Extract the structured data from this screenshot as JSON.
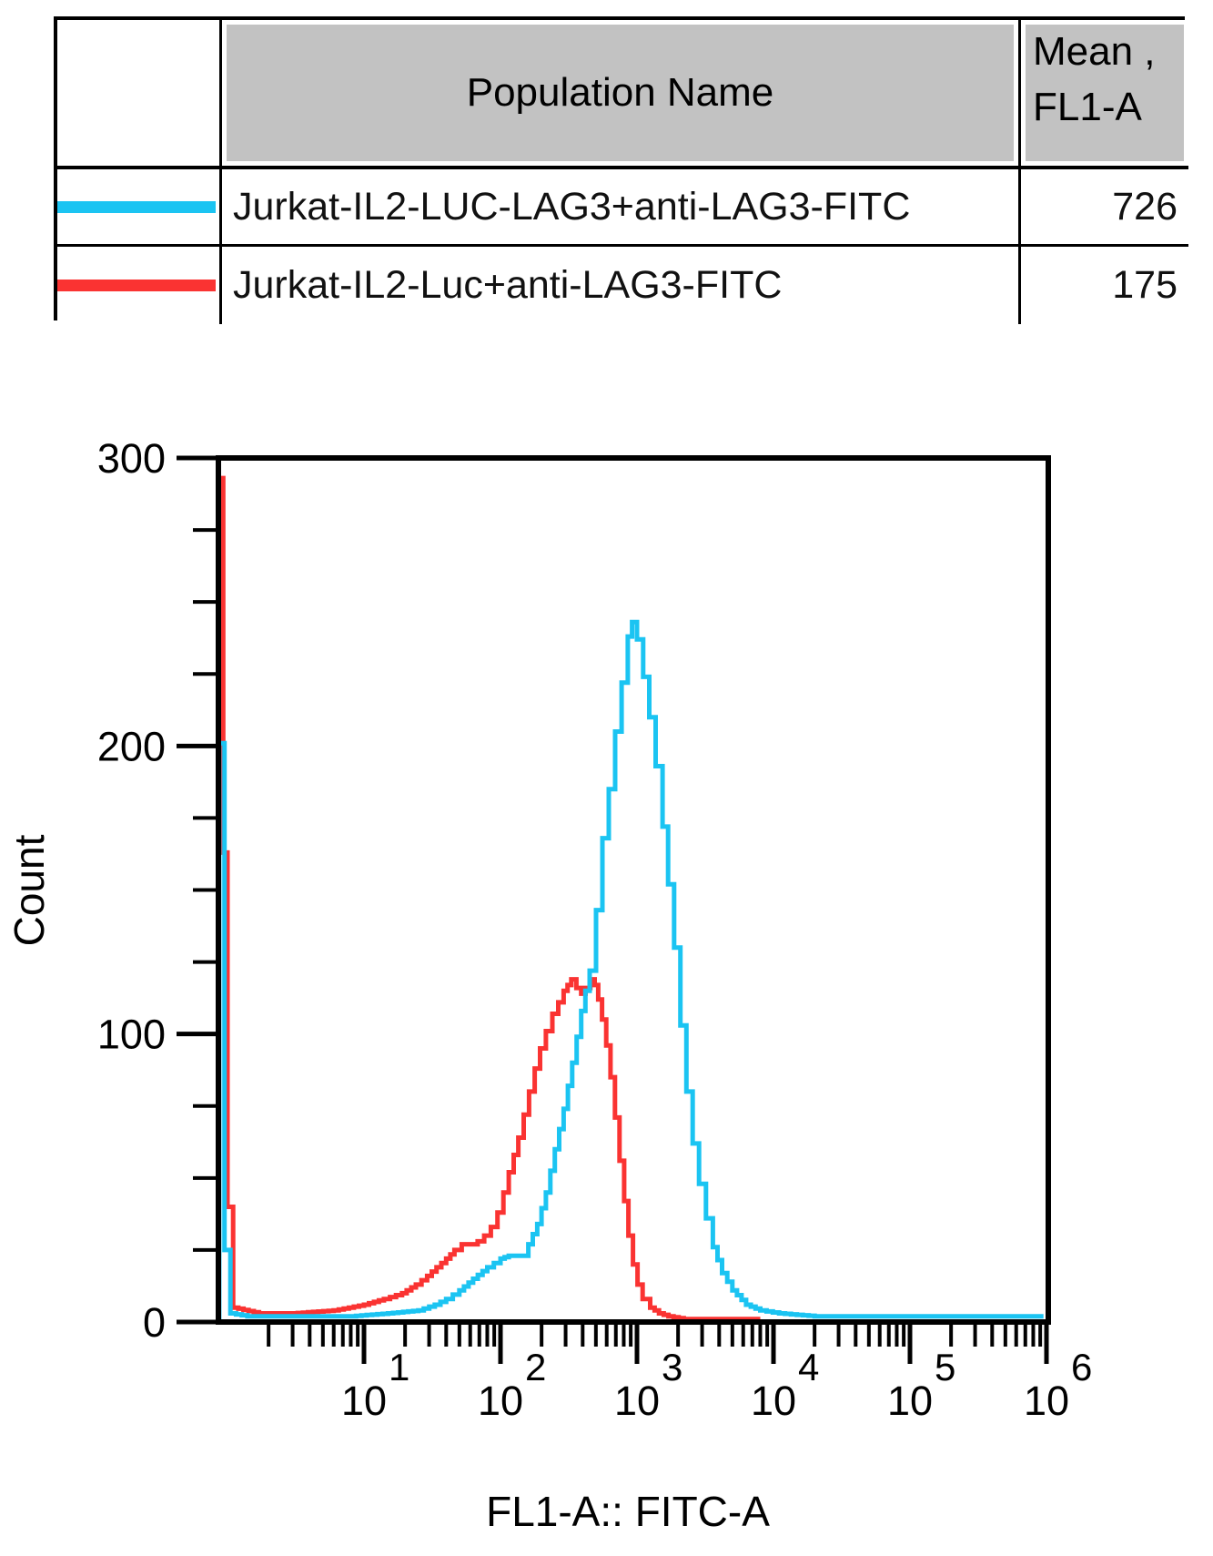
{
  "table": {
    "header": {
      "population": "Population Name",
      "mean_line1": "Mean ,",
      "mean_line2": "FL1-A"
    },
    "rows": [
      {
        "population": "Jurkat-IL2-LUC-LAG3+anti-LAG3-FITC",
        "mean": "726"
      },
      {
        "population": "Jurkat-IL2-Luc+anti-LAG3-FITC",
        "mean": "175"
      }
    ]
  },
  "chart_data": {
    "type": "line",
    "subtype": "flow-cytometry-step-histogram",
    "title": "",
    "xlabel": "FL1-A:: FITC-A",
    "ylabel": "Count",
    "x_scale": "log10",
    "x_range": [
      0.82,
      1070000
    ],
    "ylim": [
      0,
      300
    ],
    "y_ticks": [
      0,
      100,
      200,
      300
    ],
    "y_minor_step": 25,
    "x_decade_exponents": [
      1,
      2,
      3,
      4,
      5,
      6
    ],
    "grid": false,
    "legend_position": "table-top",
    "series": [
      {
        "name": "Jurkat-IL2-LUC-LAG3+anti-LAG3-FITC",
        "color": "#1bc4f2",
        "mean_fl1a": 726,
        "points": [
          [
            0.87,
            201
          ],
          [
            0.95,
            25
          ],
          [
            1.05,
            3
          ],
          [
            1.4,
            2
          ],
          [
            3,
            2
          ],
          [
            8,
            2
          ],
          [
            15,
            3
          ],
          [
            25,
            4
          ],
          [
            33,
            6
          ],
          [
            40,
            8
          ],
          [
            50,
            11
          ],
          [
            63,
            15
          ],
          [
            80,
            19
          ],
          [
            100,
            22
          ],
          [
            115,
            23
          ],
          [
            145,
            23
          ],
          [
            160,
            27
          ],
          [
            186,
            34
          ],
          [
            215,
            45
          ],
          [
            250,
            60
          ],
          [
            290,
            74
          ],
          [
            335,
            90
          ],
          [
            390,
            108
          ],
          [
            450,
            122
          ],
          [
            501,
            143
          ],
          [
            558,
            168
          ],
          [
            621,
            185
          ],
          [
            692,
            205
          ],
          [
            771,
            222
          ],
          [
            857,
            238
          ],
          [
            920,
            243
          ],
          [
            1000,
            237
          ],
          [
            1110,
            224
          ],
          [
            1230,
            210
          ],
          [
            1370,
            193
          ],
          [
            1540,
            172
          ],
          [
            1690,
            152
          ],
          [
            1870,
            130
          ],
          [
            2080,
            103
          ],
          [
            2300,
            80
          ],
          [
            2560,
            62
          ],
          [
            2850,
            48
          ],
          [
            3200,
            36
          ],
          [
            3600,
            26
          ],
          [
            4200,
            17
          ],
          [
            5000,
            11
          ],
          [
            6300,
            6
          ],
          [
            8000,
            4
          ],
          [
            11000,
            3
          ],
          [
            20000,
            2
          ],
          [
            950000,
            2
          ]
        ]
      },
      {
        "name": "Jurkat-IL2-Luc+anti-LAG3-FITC",
        "color": "#fa3332",
        "mean_fl1a": 175,
        "points": [
          [
            0.86,
            293
          ],
          [
            0.93,
            163
          ],
          [
            1.0,
            40
          ],
          [
            1.1,
            5
          ],
          [
            1.7,
            3
          ],
          [
            3,
            3
          ],
          [
            6,
            4
          ],
          [
            10,
            6
          ],
          [
            14,
            8
          ],
          [
            19,
            10
          ],
          [
            24,
            13
          ],
          [
            29,
            16
          ],
          [
            34,
            19
          ],
          [
            40,
            22
          ],
          [
            46,
            25
          ],
          [
            52,
            27
          ],
          [
            60,
            27
          ],
          [
            68,
            28
          ],
          [
            76,
            30
          ],
          [
            85,
            33
          ],
          [
            95,
            38
          ],
          [
            105,
            45
          ],
          [
            115,
            52
          ],
          [
            125,
            58
          ],
          [
            135,
            64
          ],
          [
            148,
            72
          ],
          [
            162,
            80
          ],
          [
            178,
            88
          ],
          [
            195,
            95
          ],
          [
            215,
            101
          ],
          [
            240,
            107
          ],
          [
            265,
            111
          ],
          [
            290,
            115
          ],
          [
            310,
            117
          ],
          [
            330,
            119
          ],
          [
            360,
            116
          ],
          [
            390,
            114
          ],
          [
            420,
            116
          ],
          [
            455,
            119
          ],
          [
            490,
            117
          ],
          [
            520,
            112
          ],
          [
            555,
            105
          ],
          [
            595,
            96
          ],
          [
            640,
            85
          ],
          [
            690,
            71
          ],
          [
            745,
            56
          ],
          [
            805,
            42
          ],
          [
            865,
            30
          ],
          [
            935,
            20
          ],
          [
            1010,
            13
          ],
          [
            1100,
            8
          ],
          [
            1250,
            5
          ],
          [
            1450,
            3
          ],
          [
            1700,
            2
          ],
          [
            2200,
            1
          ],
          [
            8000,
            1
          ]
        ]
      }
    ]
  }
}
